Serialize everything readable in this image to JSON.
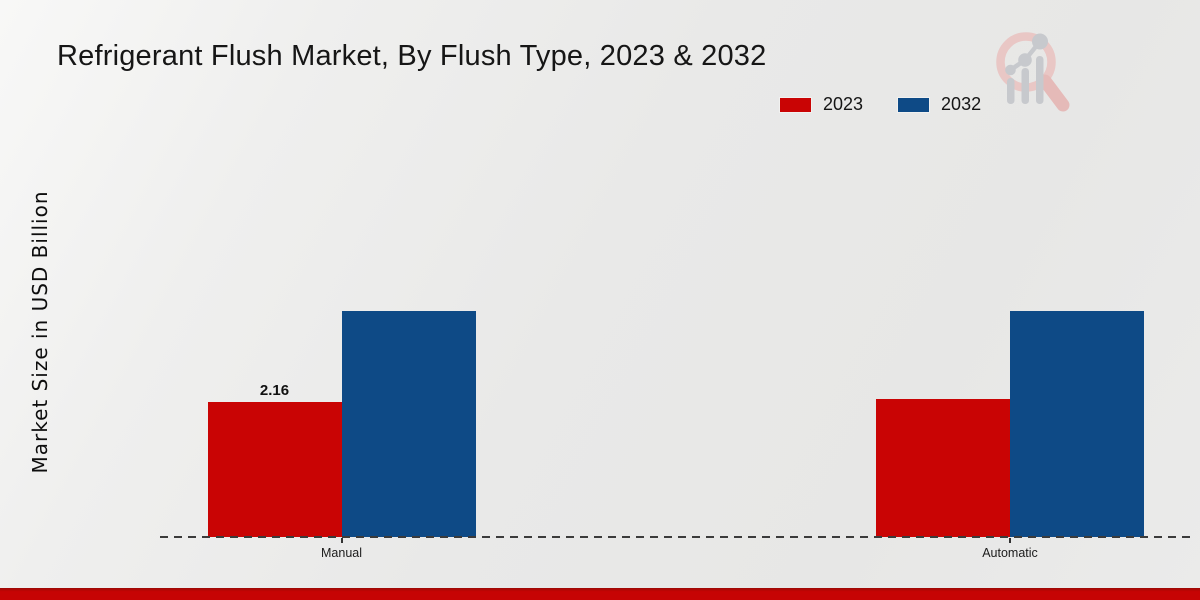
{
  "title": "Refrigerant Flush Market, By Flush Type, 2023 & 2032",
  "y_axis_label": "Market Size in USD Billion",
  "legend": {
    "items": [
      {
        "label": "2023",
        "color": "#c90404"
      },
      {
        "label": "2032",
        "color": "#0e4a86"
      }
    ]
  },
  "branding": {
    "logo_icon": "magnifier-growth-chart-logo",
    "footer_accent_color": "#c60404"
  },
  "chart_data": {
    "type": "bar",
    "title": "Refrigerant Flush Market, By Flush Type, 2023 & 2032",
    "xlabel": "",
    "ylabel": "Market Size in USD Billion",
    "categories": [
      "Manual",
      "Automatic"
    ],
    "series": [
      {
        "name": "2023",
        "color": "#c90404",
        "values": [
          2.16,
          2.2
        ]
      },
      {
        "name": "2032",
        "color": "#0e4a86",
        "values": [
          3.6,
          3.6
        ]
      }
    ],
    "bar_value_labels": [
      {
        "series": "2023",
        "category": "Manual",
        "text": "2.16"
      }
    ],
    "grid": false,
    "legend_position": "top-right",
    "baseline_style": "dashed"
  }
}
